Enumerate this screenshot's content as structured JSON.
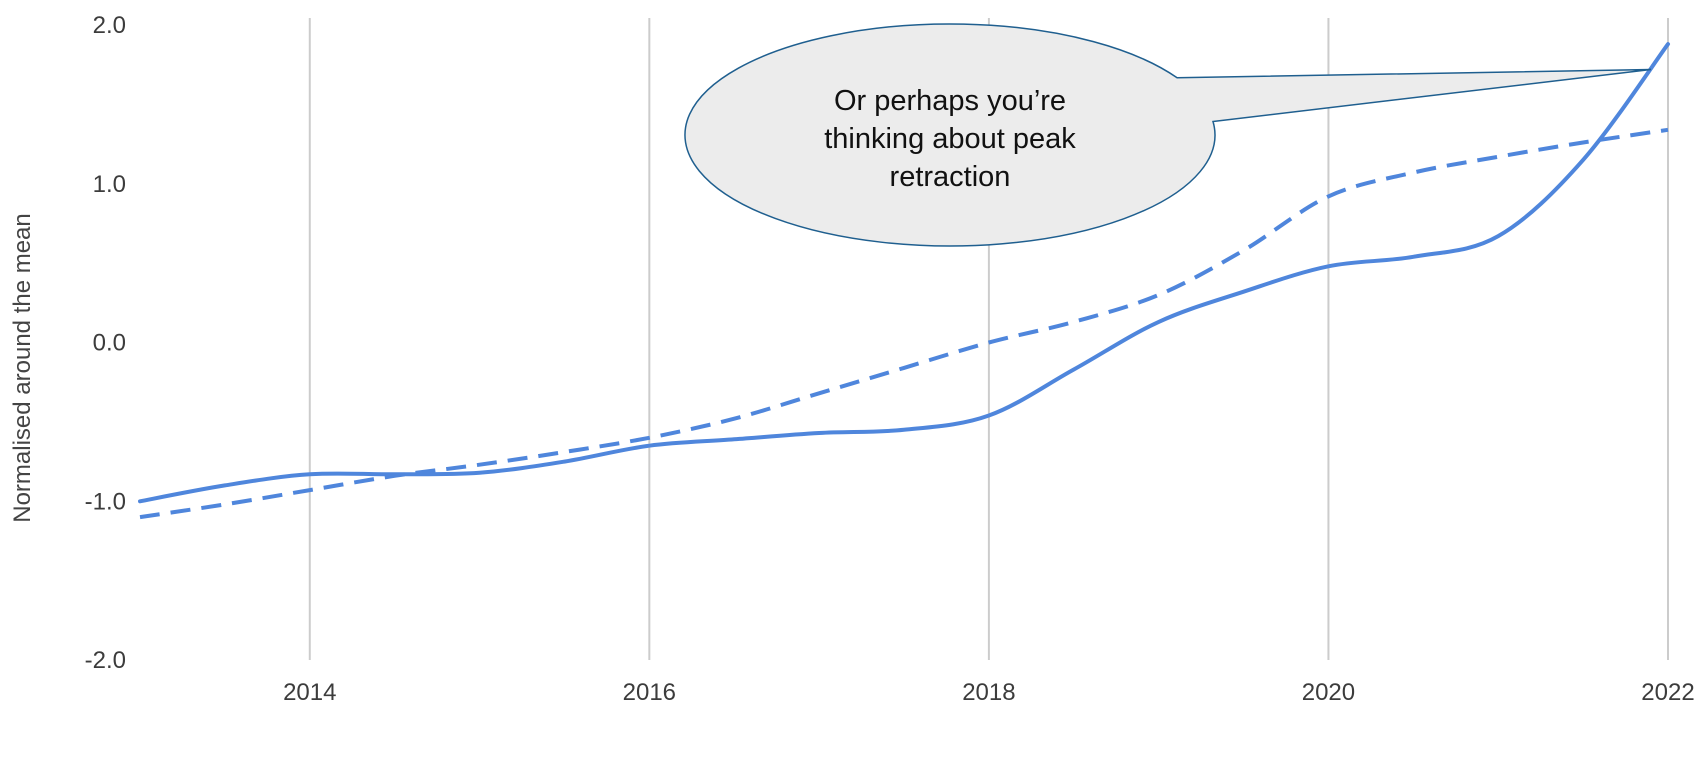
{
  "chart_data": {
    "type": "line",
    "title": "",
    "xlabel": "",
    "ylabel": "Normalised around the mean",
    "xlim": [
      2013,
      2022
    ],
    "ylim": [
      -2.0,
      2.0
    ],
    "x_ticks": [
      "2014",
      "2016",
      "2018",
      "2020",
      "2022"
    ],
    "y_ticks": [
      "2.0",
      "1.0",
      "0.0",
      "-1.0",
      "-2.0"
    ],
    "grid": "vertical",
    "legend": "none",
    "series": [
      {
        "style": "solid",
        "color": "#4f86dc",
        "x": [
          2013,
          2013.5,
          2014,
          2014.5,
          2015,
          2015.5,
          2016,
          2016.5,
          2017,
          2017.5,
          2018,
          2018.5,
          2019,
          2019.5,
          2020,
          2020.5,
          2021,
          2021.5,
          2022
        ],
        "y": [
          -1.0,
          -0.9,
          -0.83,
          -0.83,
          -0.82,
          -0.75,
          -0.65,
          -0.61,
          -0.57,
          -0.55,
          -0.46,
          -0.17,
          0.13,
          0.32,
          0.48,
          0.54,
          0.67,
          1.15,
          1.88
        ]
      },
      {
        "style": "dashed",
        "color": "#4f86dc",
        "x": [
          2013,
          2013.5,
          2014,
          2014.5,
          2015,
          2015.5,
          2016,
          2016.5,
          2017,
          2017.5,
          2018,
          2018.5,
          2019,
          2019.5,
          2020,
          2020.5,
          2021,
          2021.5,
          2022
        ],
        "y": [
          -1.1,
          -1.02,
          -0.93,
          -0.84,
          -0.77,
          -0.69,
          -0.6,
          -0.48,
          -0.32,
          -0.16,
          0.0,
          0.13,
          0.3,
          0.58,
          0.92,
          1.07,
          1.17,
          1.26,
          1.34
        ]
      }
    ],
    "annotation": {
      "text_lines": [
        "Or perhaps you’re",
        "thinking about peak",
        "retraction"
      ],
      "fill": "#ececec",
      "stroke": "#1f5f8f",
      "points_to": {
        "x": 2021.9,
        "y": 1.72
      }
    }
  }
}
